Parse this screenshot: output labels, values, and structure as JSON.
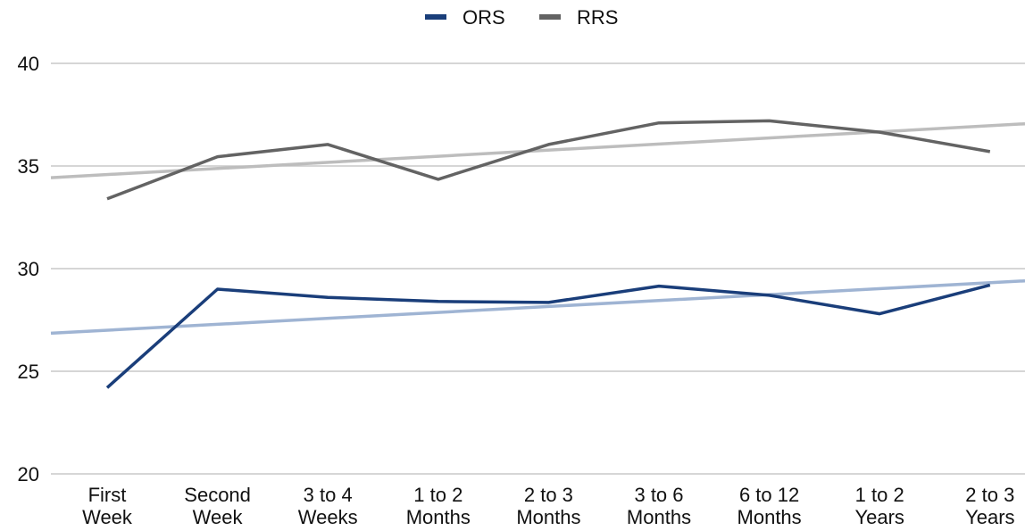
{
  "chart_data": {
    "type": "line",
    "categories": [
      [
        "First",
        "Week"
      ],
      [
        "Second",
        "Week"
      ],
      [
        "3 to 4",
        "Weeks"
      ],
      [
        "1 to 2",
        "Months"
      ],
      [
        "2 to 3",
        "Months"
      ],
      [
        "3 to 6",
        "Months"
      ],
      [
        "6 to 12",
        "Months"
      ],
      [
        "1 to 2",
        "Years"
      ],
      [
        "2 to 3",
        "Years"
      ]
    ],
    "series": [
      {
        "name": "ORS",
        "color": "#1a3e7a",
        "trend_color": "#9fb4d3",
        "values": [
          24.2,
          29.0,
          28.6,
          28.4,
          28.35,
          29.15,
          28.7,
          27.8,
          29.2
        ]
      },
      {
        "name": "RRS",
        "color": "#636363",
        "trend_color": "#bdbdbd",
        "values": [
          33.4,
          35.45,
          36.05,
          34.35,
          36.05,
          37.1,
          37.2,
          36.65,
          35.7
        ]
      }
    ],
    "trendlines": [
      {
        "series": "ORS",
        "color": "#9fb4d3"
      },
      {
        "series": "RRS",
        "color": "#bdbdbd"
      }
    ],
    "y_ticks": [
      "20",
      "25",
      "30",
      "35",
      "40"
    ],
    "ylim": [
      20,
      40
    ],
    "grid": true,
    "legend_position": "top-center",
    "title": "",
    "xlabel": "",
    "ylabel": ""
  }
}
